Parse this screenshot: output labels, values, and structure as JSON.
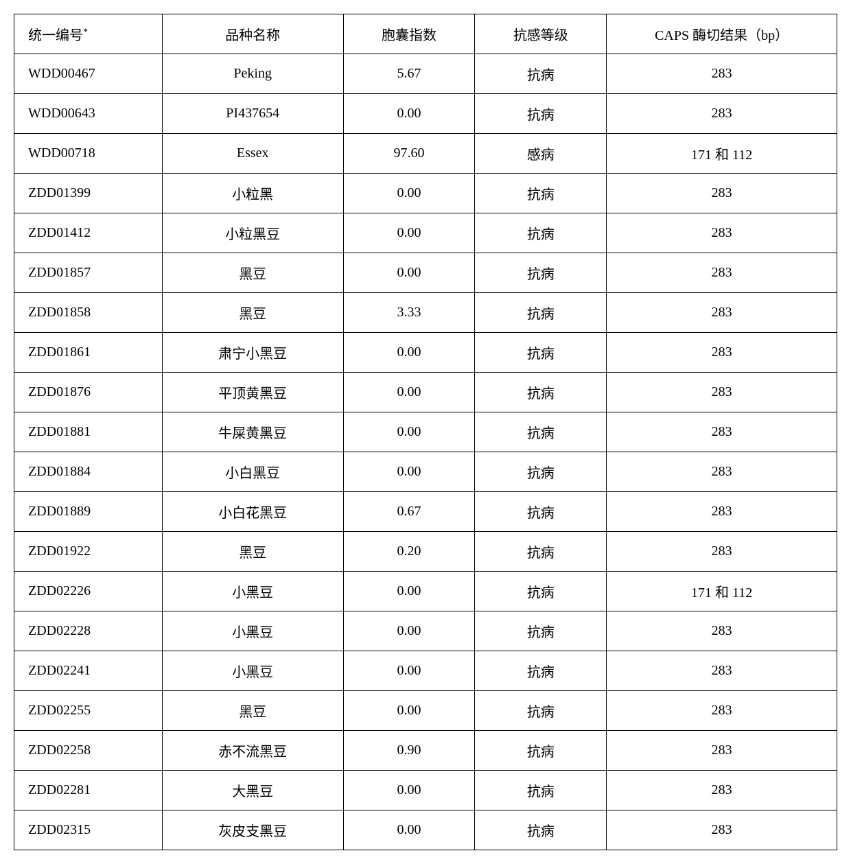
{
  "table": {
    "columns": [
      {
        "label": "统一编号",
        "suffix": "*"
      },
      {
        "label": "品种名称"
      },
      {
        "label": "胞囊指数"
      },
      {
        "label": "抗感等级"
      },
      {
        "label": "CAPS 酶切结果（bp）"
      }
    ],
    "rows": [
      {
        "id": "WDD00467",
        "name": "Peking",
        "index": "5.67",
        "level": "抗病",
        "caps": "283"
      },
      {
        "id": "WDD00643",
        "name": "PI437654",
        "index": "0.00",
        "level": "抗病",
        "caps": "283"
      },
      {
        "id": "WDD00718",
        "name": "Essex",
        "index": "97.60",
        "level": "感病",
        "caps": "171 和 112"
      },
      {
        "id": "ZDD01399",
        "name": "小粒黑",
        "index": "0.00",
        "level": "抗病",
        "caps": "283"
      },
      {
        "id": "ZDD01412",
        "name": "小粒黑豆",
        "index": "0.00",
        "level": "抗病",
        "caps": "283"
      },
      {
        "id": "ZDD01857",
        "name": "黑豆",
        "index": "0.00",
        "level": "抗病",
        "caps": "283"
      },
      {
        "id": "ZDD01858",
        "name": "黑豆",
        "index": "3.33",
        "level": "抗病",
        "caps": "283"
      },
      {
        "id": "ZDD01861",
        "name": "肃宁小黑豆",
        "index": "0.00",
        "level": "抗病",
        "caps": "283"
      },
      {
        "id": "ZDD01876",
        "name": "平顶黄黑豆",
        "index": "0.00",
        "level": "抗病",
        "caps": "283"
      },
      {
        "id": "ZDD01881",
        "name": "牛屎黄黑豆",
        "index": "0.00",
        "level": "抗病",
        "caps": "283"
      },
      {
        "id": "ZDD01884",
        "name": "小白黑豆",
        "index": "0.00",
        "level": "抗病",
        "caps": "283"
      },
      {
        "id": "ZDD01889",
        "name": "小白花黑豆",
        "index": "0.67",
        "level": "抗病",
        "caps": "283"
      },
      {
        "id": "ZDD01922",
        "name": "黑豆",
        "index": "0.20",
        "level": "抗病",
        "caps": "283"
      },
      {
        "id": "ZDD02226",
        "name": "小黑豆",
        "index": "0.00",
        "level": "抗病",
        "caps": "171 和 112"
      },
      {
        "id": "ZDD02228",
        "name": "小黑豆",
        "index": "0.00",
        "level": "抗病",
        "caps": "283"
      },
      {
        "id": "ZDD02241",
        "name": "小黑豆",
        "index": "0.00",
        "level": "抗病",
        "caps": "283"
      },
      {
        "id": "ZDD02255",
        "name": "黑豆",
        "index": "0.00",
        "level": "抗病",
        "caps": "283"
      },
      {
        "id": "ZDD02258",
        "name": "赤不流黑豆",
        "index": "0.90",
        "level": "抗病",
        "caps": "283"
      },
      {
        "id": "ZDD02281",
        "name": "大黑豆",
        "index": "0.00",
        "level": "抗病",
        "caps": "283"
      },
      {
        "id": "ZDD02315",
        "name": "灰皮支黑豆",
        "index": "0.00",
        "level": "抗病",
        "caps": "283"
      }
    ]
  },
  "styling": {
    "border_color": "#000000",
    "background_color": "#ffffff",
    "text_color": "#000000",
    "font_size": 20,
    "cell_padding": "14px 8px"
  }
}
